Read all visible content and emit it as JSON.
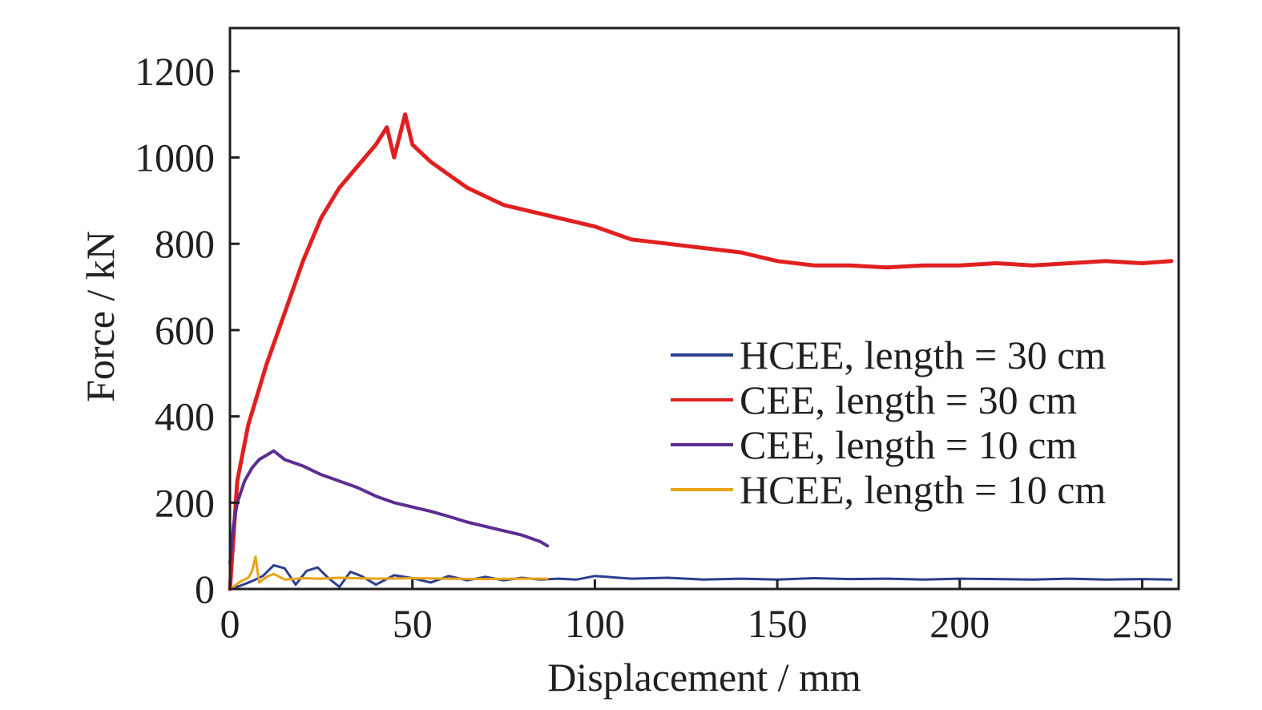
{
  "chart_data": {
    "type": "line",
    "title": "",
    "xlabel": "Displacement / mm",
    "ylabel": "Force / kN",
    "xlim": [
      0,
      260
    ],
    "ylim": [
      0,
      1300
    ],
    "xticks": [
      0,
      50,
      100,
      150,
      200,
      250
    ],
    "yticks": [
      0,
      200,
      400,
      600,
      800,
      1000,
      1200
    ],
    "grid": false,
    "legend_position": "center-right",
    "series": [
      {
        "name": "HCEE, length = 30 cm",
        "color": "#2b3f8f",
        "x": [
          0,
          3,
          6,
          9,
          12,
          15,
          18,
          21,
          24,
          27,
          30,
          33,
          36,
          40,
          45,
          50,
          55,
          60,
          65,
          70,
          75,
          80,
          85,
          90,
          95,
          100,
          110,
          120,
          130,
          140,
          150,
          160,
          170,
          180,
          190,
          200,
          210,
          220,
          230,
          240,
          250,
          258
        ],
        "y": [
          0,
          8,
          18,
          30,
          55,
          48,
          10,
          42,
          50,
          25,
          5,
          40,
          30,
          10,
          32,
          25,
          15,
          30,
          20,
          28,
          20,
          26,
          22,
          24,
          22,
          30,
          24,
          26,
          22,
          24,
          22,
          25,
          23,
          24,
          22,
          24,
          23,
          22,
          24,
          22,
          23,
          22
        ]
      },
      {
        "name": "CEE, length = 30 cm",
        "color": "#e02020",
        "x": [
          0,
          2,
          5,
          10,
          15,
          20,
          25,
          30,
          35,
          40,
          43,
          45,
          48,
          50,
          55,
          60,
          65,
          70,
          75,
          80,
          90,
          100,
          110,
          120,
          130,
          140,
          150,
          160,
          170,
          180,
          190,
          200,
          210,
          220,
          230,
          240,
          250,
          258
        ],
        "y": [
          0,
          250,
          380,
          520,
          640,
          760,
          860,
          930,
          980,
          1030,
          1070,
          1000,
          1100,
          1030,
          990,
          960,
          930,
          910,
          890,
          880,
          860,
          840,
          810,
          800,
          790,
          780,
          760,
          750,
          750,
          745,
          750,
          750,
          755,
          750,
          755,
          760,
          755,
          760
        ]
      },
      {
        "name": "CEE, length = 10 cm",
        "color": "#5c2d91",
        "x": [
          0,
          1,
          2,
          4,
          6,
          8,
          10,
          12,
          15,
          20,
          25,
          30,
          35,
          40,
          45,
          50,
          55,
          60,
          65,
          70,
          75,
          80,
          85,
          87
        ],
        "y": [
          60,
          150,
          200,
          250,
          280,
          300,
          310,
          320,
          300,
          285,
          265,
          250,
          235,
          215,
          200,
          190,
          180,
          168,
          155,
          145,
          135,
          125,
          110,
          100
        ]
      },
      {
        "name": "HCEE, length = 10 cm",
        "color": "#e8a317",
        "x": [
          0,
          1,
          2,
          3,
          4,
          5,
          6,
          7,
          8,
          10,
          12,
          15,
          20,
          25,
          30,
          40,
          50,
          60,
          70,
          80,
          87
        ],
        "y": [
          0,
          5,
          12,
          18,
          22,
          26,
          40,
          75,
          15,
          28,
          35,
          22,
          25,
          24,
          26,
          24,
          25,
          24,
          23,
          24,
          24
        ]
      }
    ]
  }
}
